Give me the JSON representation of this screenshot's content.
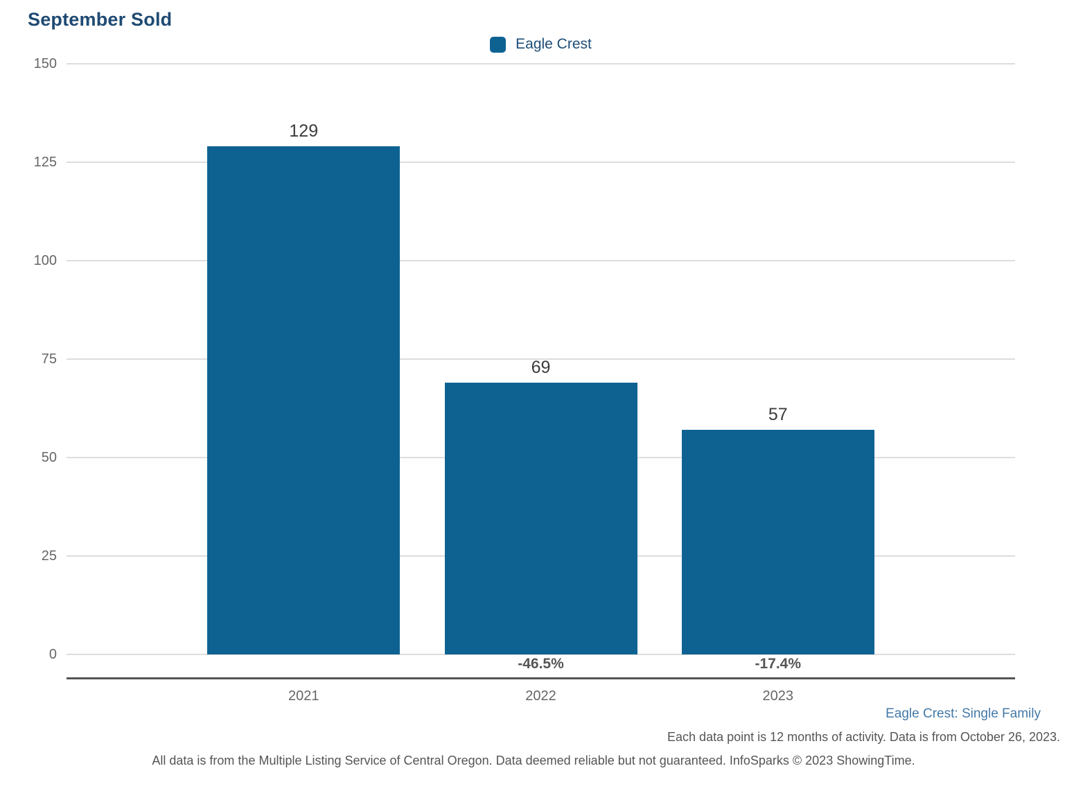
{
  "title": "September Sold",
  "legend": {
    "label": "Eagle Crest",
    "swatch_color": "#0e6292"
  },
  "chart_data": {
    "type": "bar",
    "title": "September Sold",
    "categories": [
      "2021",
      "2022",
      "2023"
    ],
    "values": [
      129,
      69,
      57
    ],
    "value_labels": [
      "129",
      "69",
      "57"
    ],
    "change_labels": [
      "",
      "-46.5%",
      "-17.4%"
    ],
    "series_name": "Eagle Crest",
    "xlabel": "",
    "ylabel": "",
    "ylim": [
      0,
      150
    ],
    "yticks": [
      0,
      25,
      50,
      75,
      100,
      125,
      150
    ],
    "grid": "horizontal",
    "legend_position": "top-center",
    "bar_color": "#0e6292"
  },
  "colors": {
    "bar": "#0e6292",
    "title_text": "#1f4a73",
    "legend_text": "#1d4d77",
    "tick_text": "#666666",
    "value_text": "#3c3c3c",
    "percent_text": "#555555",
    "gridline": "#dddddd",
    "axis_line": "#555555",
    "footer_link": "#4379a8",
    "footer_text": "#555555"
  },
  "footer": {
    "series_note": "Eagle Crest: Single Family",
    "data_note": "Each data point is 12 months of activity. Data is from October 26, 2023.",
    "disclaimer": "All data is from the Multiple Listing Service of Central Oregon. Data deemed reliable but not guaranteed. InfoSparks © 2023 ShowingTime."
  }
}
